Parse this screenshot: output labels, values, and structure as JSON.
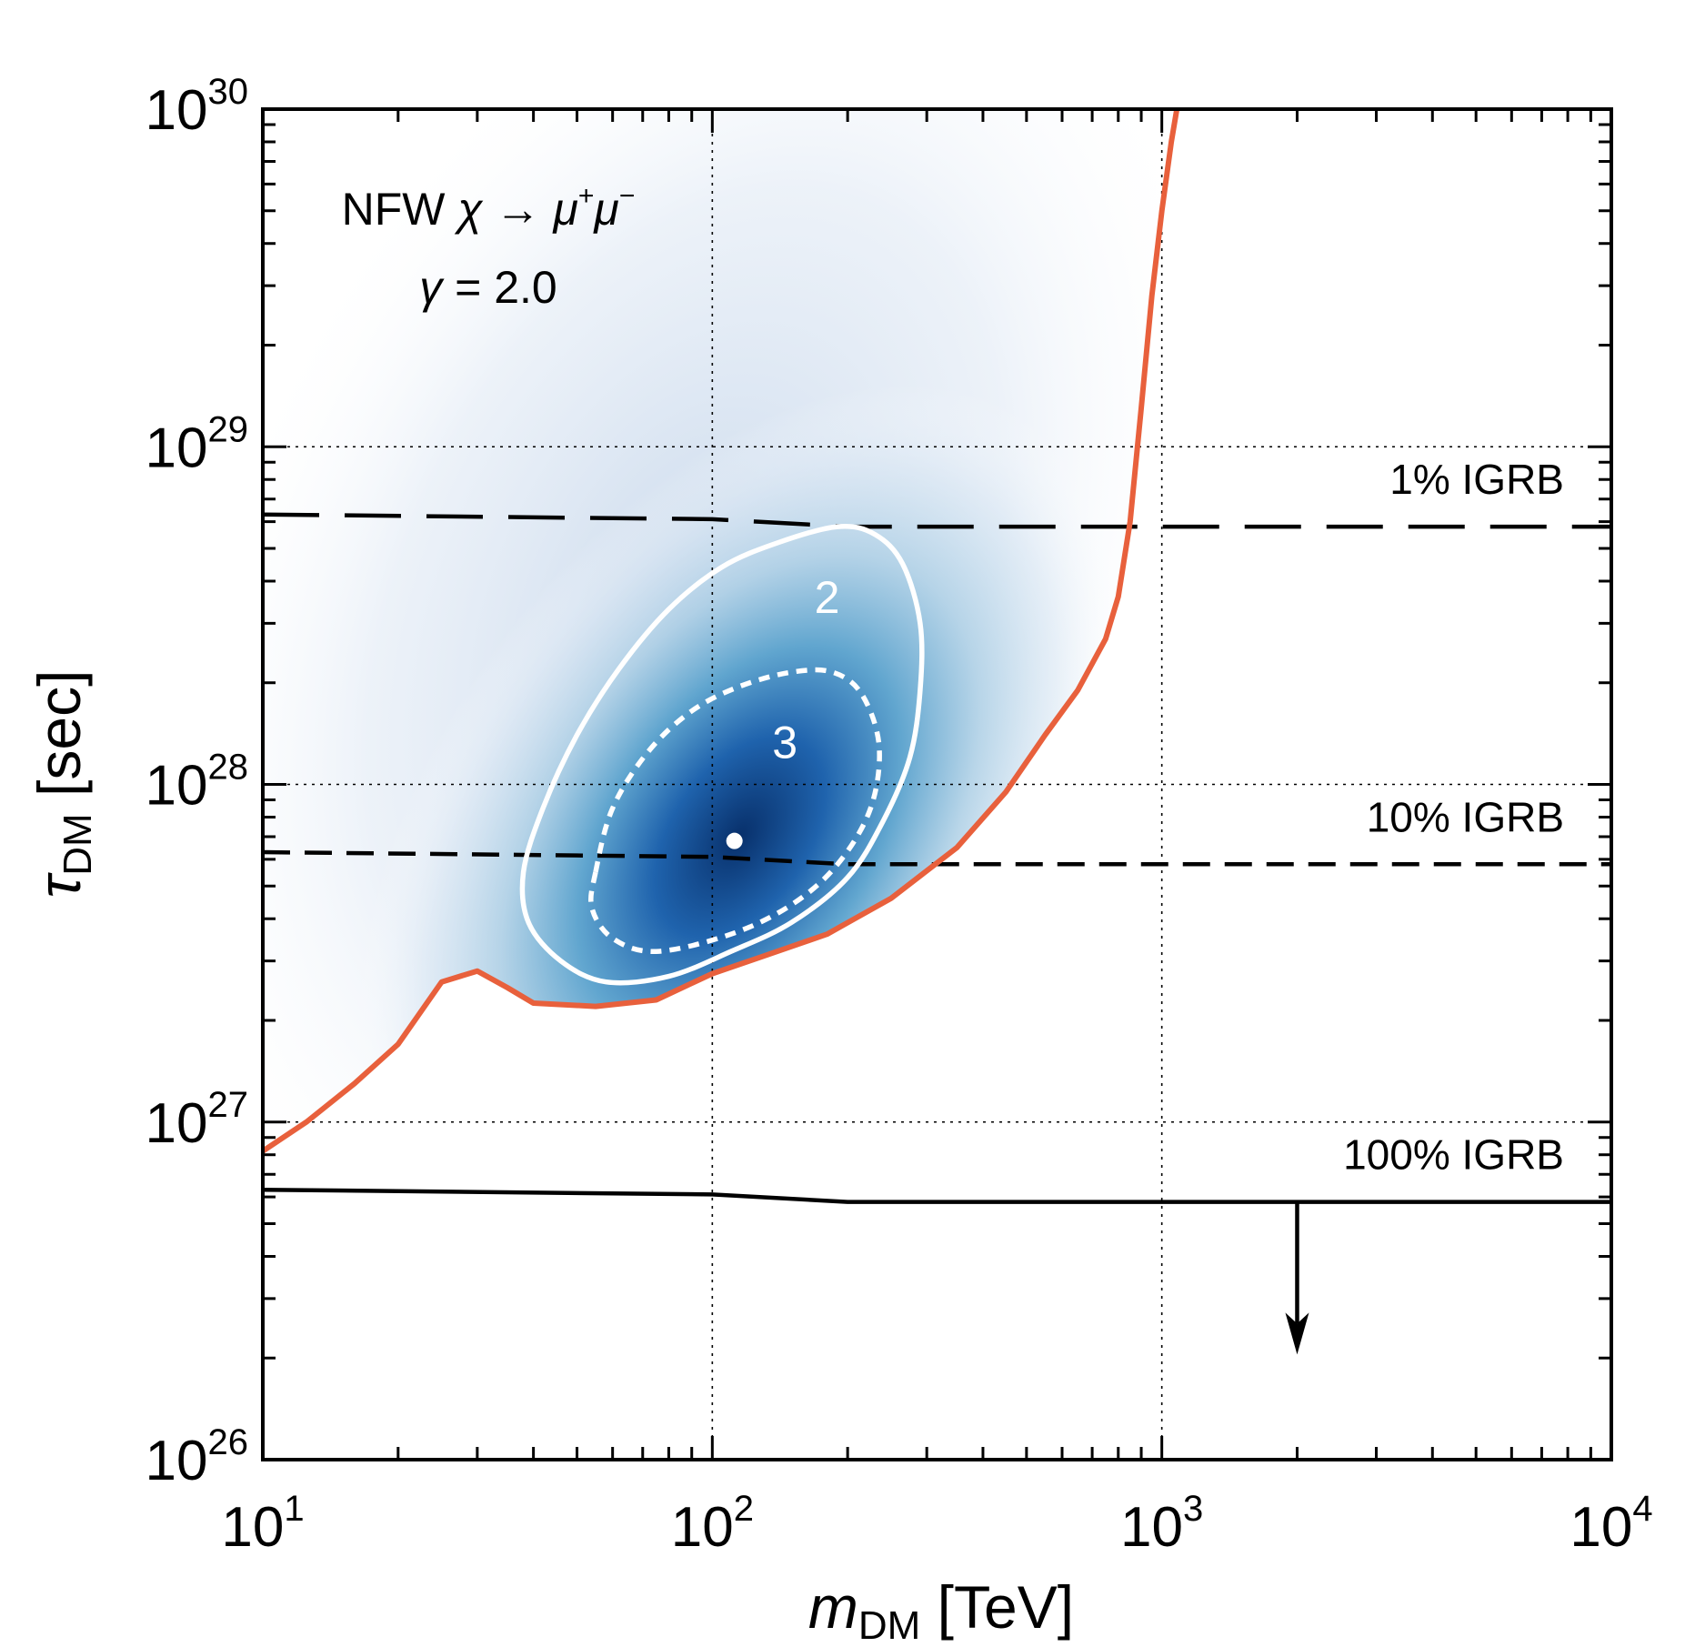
{
  "chart_data": {
    "type": "heatmap",
    "x_scale": "log",
    "y_scale": "log",
    "xlim": [
      10,
      10000
    ],
    "ylim": [
      1e+26,
      1e+30
    ],
    "x_ticks": [
      {
        "value": 10,
        "base": "10",
        "exp": "1"
      },
      {
        "value": 100,
        "base": "10",
        "exp": "2"
      },
      {
        "value": 1000,
        "base": "10",
        "exp": "3"
      },
      {
        "value": 10000,
        "base": "10",
        "exp": "4"
      }
    ],
    "y_ticks": [
      {
        "value": 1e+26,
        "base": "10",
        "exp": "26"
      },
      {
        "value": 1e+27,
        "base": "10",
        "exp": "27"
      },
      {
        "value": 1e+28,
        "base": "10",
        "exp": "28"
      },
      {
        "value": 1e+29,
        "base": "10",
        "exp": "29"
      },
      {
        "value": 1e+30,
        "base": "10",
        "exp": "30"
      }
    ],
    "xlabel": {
      "main": "m",
      "sub": "DM",
      "unit": "[TeV]"
    },
    "ylabel": {
      "main": "τ",
      "sub": "DM",
      "unit": "[sec]"
    },
    "grid": "dotted at decades",
    "annotation": {
      "line1_a": "NFW ",
      "line1_chi": "χ",
      "line1_arrow": " → ",
      "line1_mu1": "μ",
      "line1_plus": "+",
      "line1_mu2": "μ",
      "line1_minus": "−",
      "line2_gamma": "γ",
      "line2_rest": " = 2.0"
    },
    "best_fit": {
      "x": 112,
      "y": 6.8e+27
    },
    "exclusion_curve": {
      "color": "#e8603c",
      "points": [
        [
          10,
          8.2e+26
        ],
        [
          12.5,
          1e+27
        ],
        [
          16,
          1.3e+27
        ],
        [
          20,
          1.7e+27
        ],
        [
          25,
          2.6e+27
        ],
        [
          30,
          2.8e+27
        ],
        [
          35,
          2.5e+27
        ],
        [
          40,
          2.25e+27
        ],
        [
          55,
          2.2e+27
        ],
        [
          75,
          2.3e+27
        ],
        [
          100,
          2.75e+27
        ],
        [
          130,
          3.1e+27
        ],
        [
          180,
          3.6e+27
        ],
        [
          250,
          4.6e+27
        ],
        [
          350,
          6.5e+27
        ],
        [
          450,
          9.5e+27
        ],
        [
          550,
          1.4e+28
        ],
        [
          650,
          1.9e+28
        ],
        [
          750,
          2.7e+28
        ],
        [
          800,
          3.6e+28
        ],
        [
          850,
          6e+28
        ],
        [
          900,
          1.3e+29
        ],
        [
          950,
          2.8e+29
        ],
        [
          1000,
          5e+29
        ],
        [
          1050,
          8e+29
        ],
        [
          1080,
          1e+30
        ]
      ]
    },
    "contours": [
      {
        "label": "2",
        "style": "solid",
        "label_pos": {
          "x": 180,
          "y": 3.6e+28
        },
        "points": [
          [
            38,
            5.5e+27
          ],
          [
            42,
            8.5e+27
          ],
          [
            50,
            1.4e+28
          ],
          [
            62,
            2.2e+28
          ],
          [
            80,
            3.3e+28
          ],
          [
            105,
            4.4e+28
          ],
          [
            140,
            5.2e+28
          ],
          [
            190,
            5.8e+28
          ],
          [
            230,
            5.5e+28
          ],
          [
            265,
            4.5e+28
          ],
          [
            290,
            3e+28
          ],
          [
            290,
            1.9e+28
          ],
          [
            275,
            1.2e+28
          ],
          [
            240,
            7.8e+27
          ],
          [
            200,
            5.3e+27
          ],
          [
            150,
            3.9e+27
          ],
          [
            110,
            3.2e+27
          ],
          [
            80,
            2.7e+27
          ],
          [
            58,
            2.6e+27
          ],
          [
            46,
            3e+27
          ],
          [
            39,
            3.9e+27
          ],
          [
            38,
            5.5e+27
          ]
        ]
      },
      {
        "label": "3",
        "style": "dotted",
        "label_pos": {
          "x": 145,
          "y": 1.34e+28
        },
        "points": [
          [
            55,
            5.5e+27
          ],
          [
            60,
            8.5e+27
          ],
          [
            72,
            1.25e+28
          ],
          [
            90,
            1.65e+28
          ],
          [
            115,
            1.95e+28
          ],
          [
            150,
            2.15e+28
          ],
          [
            185,
            2.15e+28
          ],
          [
            215,
            1.85e+28
          ],
          [
            235,
            1.3e+28
          ],
          [
            225,
            8.5e+27
          ],
          [
            190,
            5.8e+27
          ],
          [
            150,
            4.4e+27
          ],
          [
            110,
            3.6e+27
          ],
          [
            75,
            3.2e+27
          ],
          [
            60,
            3.5e+27
          ],
          [
            54,
            4.3e+27
          ],
          [
            55,
            5.5e+27
          ]
        ]
      }
    ],
    "reference_lines": [
      {
        "label": "1% IGRB",
        "style": "longdash",
        "points": [
          [
            10,
            6.3e+28
          ],
          [
            100,
            6.1e+28
          ],
          [
            200,
            5.8e+28
          ],
          [
            10000,
            5.8e+28
          ]
        ]
      },
      {
        "label": "10% IGRB",
        "style": "dash",
        "points": [
          [
            10,
            6.3e+27
          ],
          [
            100,
            6.1e+27
          ],
          [
            200,
            5.8e+27
          ],
          [
            10000,
            5.8e+27
          ]
        ]
      },
      {
        "label": "100% IGRB",
        "style": "solid",
        "points": [
          [
            10,
            6.3e+26
          ],
          [
            100,
            6.1e+26
          ],
          [
            200,
            5.8e+26
          ],
          [
            10000,
            5.8e+26
          ]
        ]
      }
    ],
    "arrow": {
      "x": 2000,
      "y_from": 5.8e+26,
      "y_to": 2.1e+26
    },
    "density_peak": {
      "x": 115,
      "y": 7e+27
    }
  }
}
